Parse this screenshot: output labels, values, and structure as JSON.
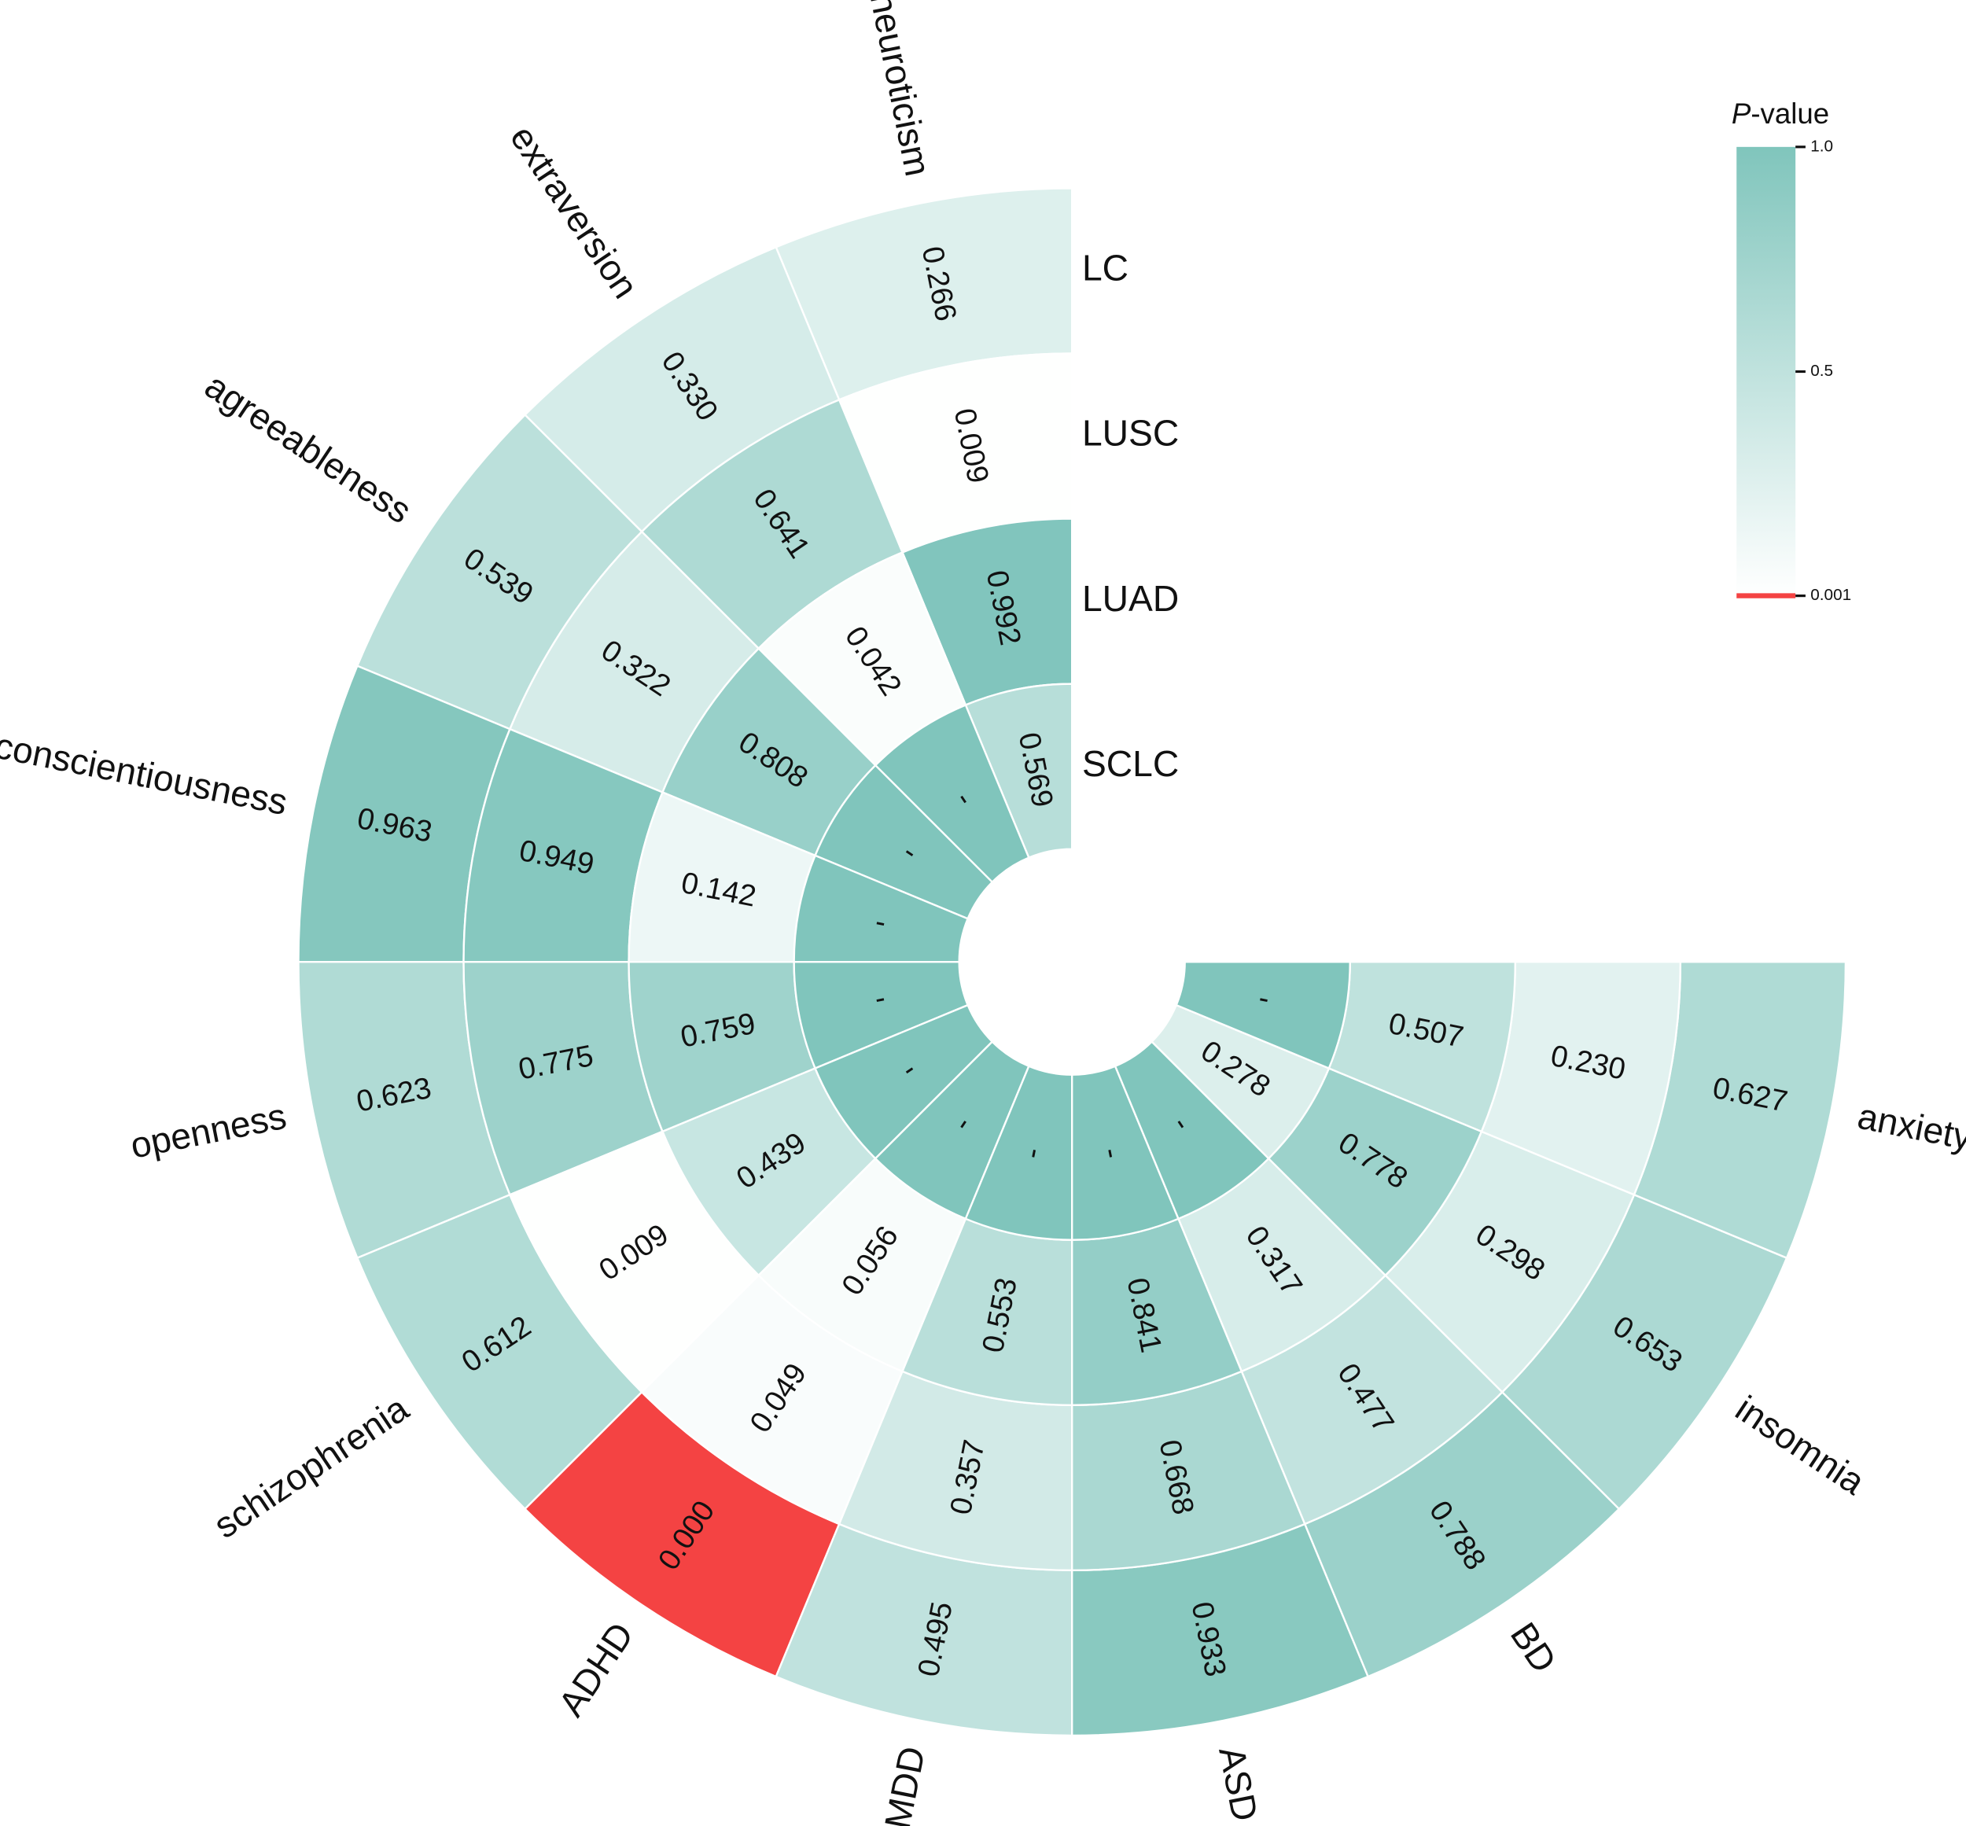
{
  "chart_data": {
    "type": "circular_heatmap",
    "categories": [
      "neuroticism",
      "extraversion",
      "agreeableness",
      "conscientiousness",
      "openness",
      "schizophrenia",
      "ADHD",
      "MDD",
      "ASD",
      "BD",
      "insomnia",
      "anxiety"
    ],
    "series": [
      {
        "name": "LC",
        "values": [
          0.266,
          0.33,
          0.539,
          0.963,
          0.623,
          0.612,
          0,
          0.495,
          0.933,
          0.788,
          0.653,
          0.627
        ],
        "value_labels": [
          "0.266",
          "0.330",
          "0.539",
          "0.963",
          "0.623",
          "0.612",
          "0.000",
          "0.495",
          "0.933",
          "0.788",
          "0.653",
          "0.627"
        ]
      },
      {
        "name": "LUSC",
        "values": [
          0.009,
          0.641,
          0.322,
          0.949,
          0.775,
          0.009,
          0.049,
          0.357,
          0.668,
          0.477,
          0.298,
          0.23
        ],
        "value_labels": [
          "0.009",
          "0.641",
          "0.322",
          "0.949",
          "0.775",
          "0.009",
          "0.049",
          "0.357",
          "0.668",
          "0.477",
          "0.298",
          "0.230"
        ]
      },
      {
        "name": "LUAD",
        "values": [
          0.992,
          0.042,
          0.808,
          0.142,
          0.759,
          0.439,
          0.056,
          0.553,
          0.841,
          0.317,
          0.778,
          0.507
        ],
        "value_labels": [
          "0.992",
          "0.042",
          "0.808",
          "0.142",
          "0.759",
          "0.439",
          "0.056",
          "0.553",
          "0.841",
          "0.317",
          "0.778",
          "0.507"
        ]
      },
      {
        "name": "SCLC",
        "values": [
          0.569,
          null,
          null,
          null,
          null,
          null,
          null,
          null,
          null,
          null,
          0.278,
          null
        ],
        "value_labels": [
          "0.569",
          "-",
          "-",
          "-",
          "-",
          "-",
          "-",
          "-",
          "-",
          "-",
          "0.278",
          "-"
        ]
      }
    ],
    "missing_color": "#80c5bc",
    "colorbar": {
      "title": "P-value",
      "clim": [
        0.001,
        1
      ],
      "ticks": [
        {
          "value": 1,
          "label": "1.0"
        },
        0.5,
        0.001
      ],
      "colors": [
        "#ffffff",
        "#80c5bc"
      ],
      "threshold_color": "#f44343"
    }
  }
}
